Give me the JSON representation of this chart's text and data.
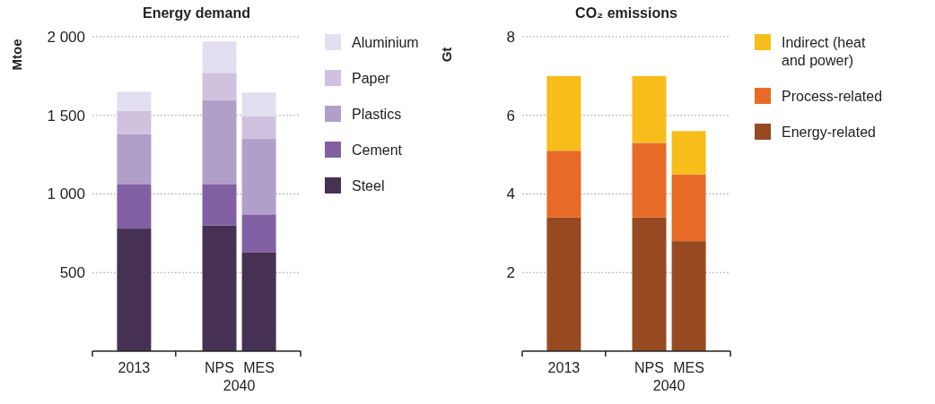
{
  "chart_data": [
    {
      "type": "bar",
      "title": "Energy demand",
      "ylabel": "Mtoe",
      "categories": [
        "2013",
        "NPS",
        "MES"
      ],
      "stacked": true,
      "ylim": [
        0,
        2000
      ],
      "yticks": [
        {
          "value": 500,
          "label": "500"
        },
        {
          "value": 1000,
          "label": "1 000"
        },
        {
          "value": 1500,
          "label": "1 500"
        },
        {
          "value": 2000,
          "label": "2 000"
        }
      ],
      "grid": "y",
      "legend": "right",
      "annotations": [
        "2040"
      ],
      "series": [
        {
          "name": "Steel",
          "color": "#463054",
          "values": [
            780,
            800,
            630
          ]
        },
        {
          "name": "Cement",
          "color": "#8060a3",
          "values": [
            280,
            260,
            240
          ]
        },
        {
          "name": "Plastics",
          "color": "#b09fc8",
          "values": [
            320,
            535,
            480
          ]
        },
        {
          "name": "Paper",
          "color": "#d0c2de",
          "values": [
            150,
            175,
            145
          ]
        },
        {
          "name": "Aluminium",
          "color": "#e3def0",
          "values": [
            120,
            200,
            150
          ]
        }
      ]
    },
    {
      "type": "bar",
      "title": "CO₂ emissions",
      "ylabel": "Gt",
      "categories": [
        "2013",
        "NPS",
        "MES"
      ],
      "stacked": true,
      "ylim": [
        0,
        8
      ],
      "yticks": [
        2,
        4,
        6,
        8
      ],
      "grid": "y",
      "legend": "right",
      "annotations": [
        "2040"
      ],
      "series": [
        {
          "name": "Energy-related",
          "color": "#974a22",
          "values": [
            3.4,
            3.4,
            2.8
          ]
        },
        {
          "name": "Process-related",
          "color": "#e76b27",
          "values": [
            1.7,
            1.9,
            1.7
          ]
        },
        {
          "name": "Indirect (heat and power)",
          "color": "#f7bd1a",
          "values": [
            1.9,
            1.7,
            1.1
          ]
        }
      ]
    }
  ]
}
